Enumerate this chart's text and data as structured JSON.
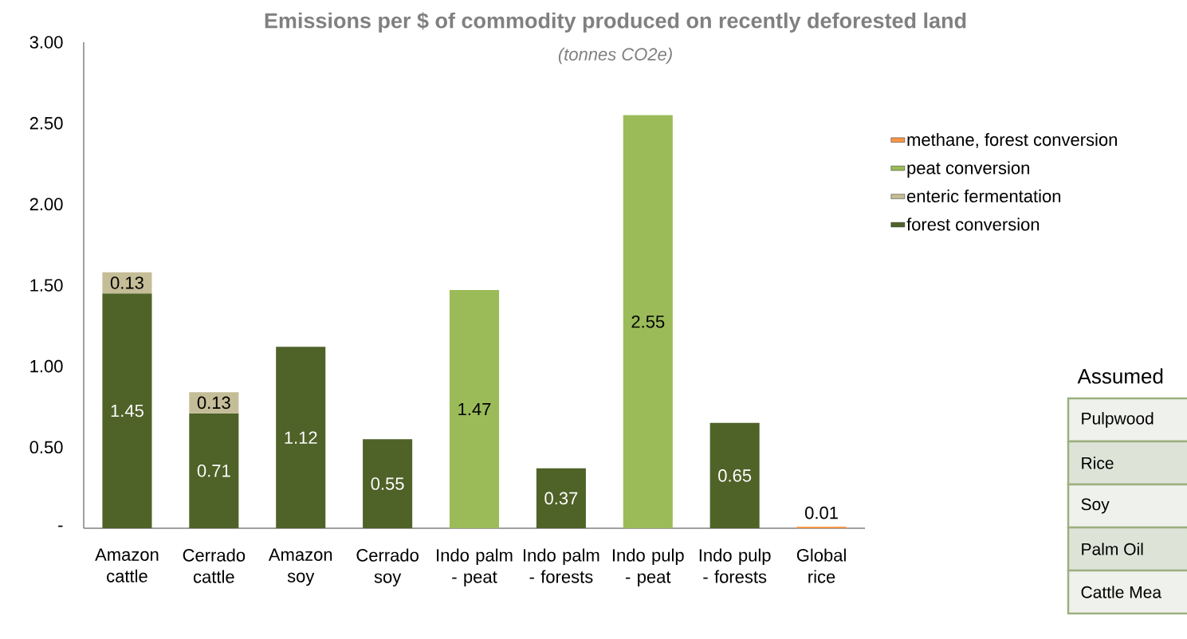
{
  "chart_data": {
    "type": "bar",
    "stacked": true,
    "title": "Emissions per $ of commodity produced on recently deforested land",
    "subtitle": "(tonnes CO2e)",
    "categories": [
      "Amazon cattle",
      "Cerrado cattle",
      "Amazon soy",
      "Cerrado soy",
      "Indo palm - peat",
      "Indo palm - forests",
      "Indo pulp - peat",
      "Indo pulp - forests",
      "Global rice"
    ],
    "series": [
      {
        "name": "forest conversion",
        "color": "#4f6228",
        "values": [
          1.45,
          0.71,
          1.12,
          0.55,
          null,
          0.37,
          null,
          0.65,
          null
        ]
      },
      {
        "name": "enteric fermentation",
        "color": "#c4bd97",
        "values": [
          0.13,
          0.13,
          null,
          null,
          null,
          null,
          null,
          null,
          null
        ]
      },
      {
        "name": "peat conversion",
        "color": "#9bbb59",
        "values": [
          null,
          null,
          null,
          null,
          1.47,
          null,
          2.55,
          null,
          null
        ]
      },
      {
        "name": "methane, forest conversion",
        "color": "#f79646",
        "values": [
          null,
          null,
          null,
          null,
          null,
          null,
          null,
          null,
          0.01
        ]
      }
    ],
    "ylim": [
      0,
      3
    ],
    "yticks": [
      {
        "value": 0,
        "label": "-"
      },
      {
        "value": 0.5,
        "label": "0.50"
      },
      {
        "value": 1,
        "label": "1.00"
      },
      {
        "value": 1.5,
        "label": "1.50"
      },
      {
        "value": 2,
        "label": "2.00"
      },
      {
        "value": 2.5,
        "label": "2.50"
      },
      {
        "value": 3,
        "label": "3.00"
      }
    ],
    "grid": false,
    "legend": "right",
    "data_labels": true,
    "annotations": [
      "Assumed",
      "Pulpwood",
      "Rice",
      "Soy",
      "Palm Oil",
      "Cattle Mea"
    ]
  }
}
